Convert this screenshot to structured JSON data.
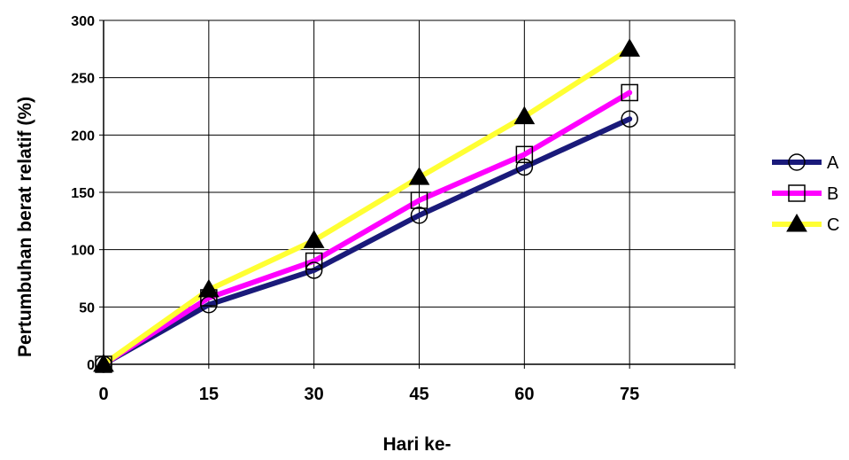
{
  "chart_data": {
    "type": "line",
    "title": "",
    "xlabel": "Hari ke-",
    "ylabel": "Pertumbuhan berat relatif (%)",
    "x": [
      0,
      15,
      30,
      45,
      60,
      75
    ],
    "x_tick_labels": [
      "0",
      "15",
      "30",
      "45",
      "60",
      "75"
    ],
    "xlim": [
      0,
      90
    ],
    "ylim": [
      0,
      300
    ],
    "y_ticks": [
      0,
      50,
      100,
      150,
      200,
      250,
      300
    ],
    "y_tick_labels": [
      "0",
      "50",
      "100",
      "150",
      "200",
      "250",
      "300"
    ],
    "grid": true,
    "legend_position": "right",
    "series": [
      {
        "name": "A",
        "values": [
          0,
          52,
          82,
          130,
          172,
          214
        ],
        "color": "#1a1a7a",
        "marker": "circle"
      },
      {
        "name": "B",
        "values": [
          0,
          58,
          90,
          143,
          183,
          237
        ],
        "color": "#ff00ff",
        "marker": "square"
      },
      {
        "name": "C",
        "values": [
          0,
          65,
          108,
          163,
          216,
          275
        ],
        "color": "#ffff33",
        "marker": "triangle"
      }
    ]
  }
}
